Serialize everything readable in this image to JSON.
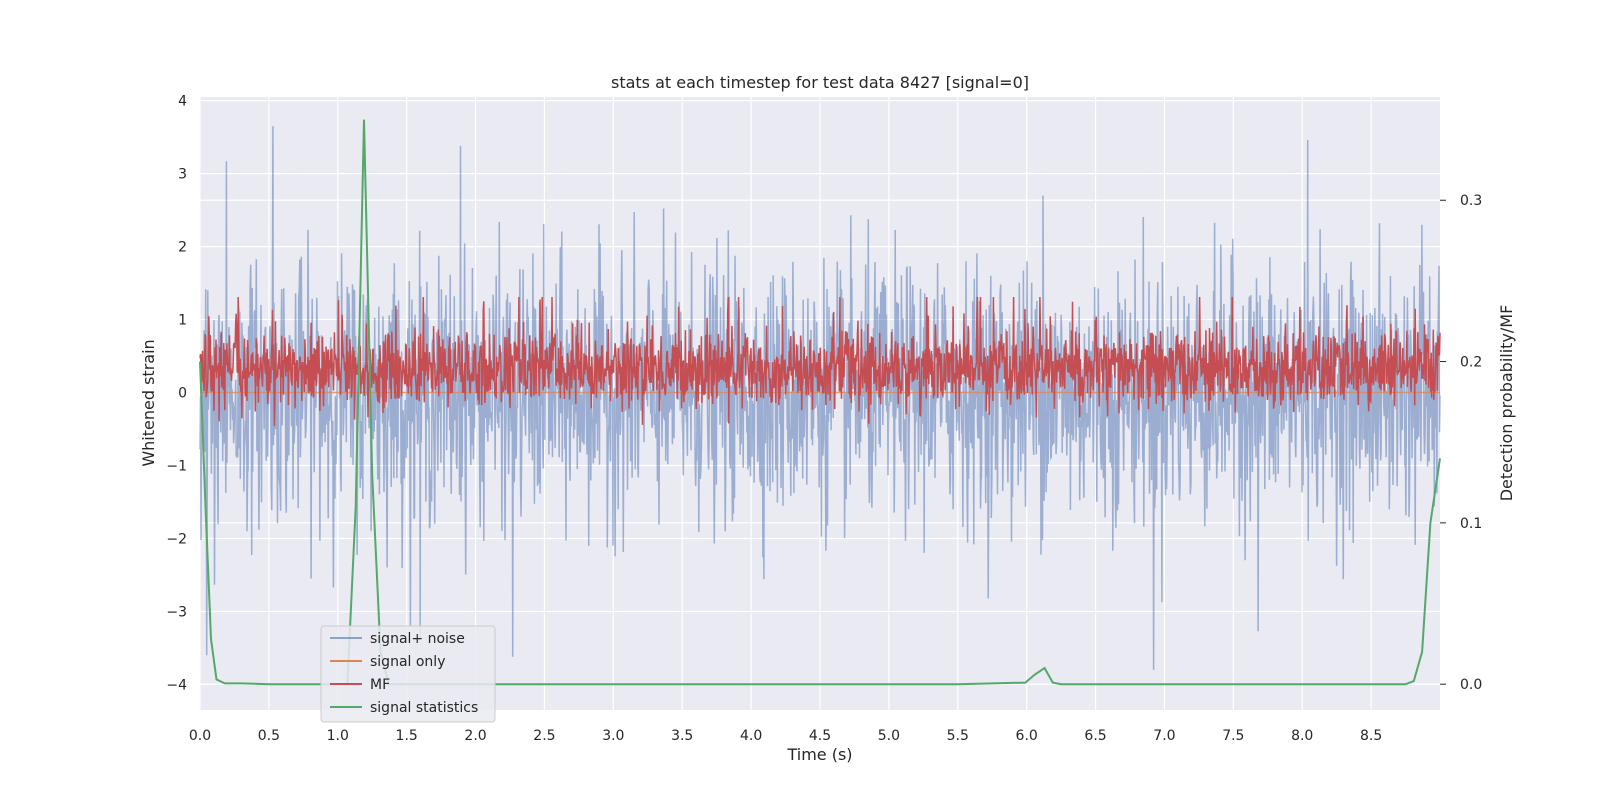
{
  "chart_data": {
    "type": "line",
    "title": "stats at each timestep for test data 8427 [signal=0]",
    "xlabel": "Time (s)",
    "ylabel_left": "Whitened strain",
    "ylabel_right": "Detection probability/MF",
    "xlim": [
      0.0,
      9.0
    ],
    "ylim_left": [
      -4.35,
      4.05
    ],
    "ylim_right": [
      -0.016,
      0.364
    ],
    "xticks": [
      "0.0",
      "0.5",
      "1.0",
      "1.5",
      "2.0",
      "2.5",
      "3.0",
      "3.5",
      "4.0",
      "4.5",
      "5.0",
      "5.5",
      "6.0",
      "6.5",
      "7.0",
      "7.5",
      "8.0",
      "8.5"
    ],
    "xtick_values": [
      0.0,
      0.5,
      1.0,
      1.5,
      2.0,
      2.5,
      3.0,
      3.5,
      4.0,
      4.5,
      5.0,
      5.5,
      6.0,
      6.5,
      7.0,
      7.5,
      8.0,
      8.5
    ],
    "yticks_left": [
      "−4",
      "−3",
      "−2",
      "−1",
      "0",
      "1",
      "2",
      "3",
      "4"
    ],
    "ytick_values_left": [
      -4,
      -3,
      -2,
      -1,
      0,
      1,
      2,
      3,
      4
    ],
    "yticks_right": [
      "0.0",
      "0.1",
      "0.2",
      "0.3"
    ],
    "ytick_values_right": [
      0.0,
      0.1,
      0.2,
      0.3
    ],
    "grid": true,
    "legend_placement": "lower-left",
    "series": [
      {
        "name": "signal+ noise",
        "axis": "left",
        "color": "#4c72b0",
        "description_stats": {
          "approx_std": 0.85,
          "peak_max": 3.65,
          "peak_min": -3.85
        },
        "peaks": [
          [
            0.19,
            3.17
          ],
          [
            0.53,
            3.65
          ],
          [
            1.89,
            3.38
          ],
          [
            6.12,
            2.7
          ],
          [
            8.04,
            3.46
          ],
          [
            8.87,
            2.3
          ]
        ],
        "troughs": [
          [
            0.05,
            -3.6
          ],
          [
            2.27,
            -3.62
          ],
          [
            6.92,
            -3.8
          ],
          [
            7.68,
            -3.27
          ],
          [
            1.6,
            -3.35
          ]
        ]
      },
      {
        "name": "signal only",
        "axis": "left",
        "color": "#dd8452",
        "constant_value": 0.0
      },
      {
        "name": "MF",
        "axis": "right",
        "color": "#c44e52",
        "description_stats": {
          "approx_mean": 0.195,
          "approx_range": [
            0.16,
            0.24
          ]
        }
      },
      {
        "name": "signal statistics",
        "axis": "right",
        "color": "#55a868",
        "x": [
          0.0,
          0.04,
          0.08,
          0.12,
          0.18,
          0.3,
          0.5,
          0.8,
          1.0,
          1.07,
          1.13,
          1.19,
          1.25,
          1.31,
          1.37,
          1.5,
          2.0,
          3.0,
          4.0,
          5.0,
          5.5,
          5.99,
          6.06,
          6.13,
          6.19,
          6.25,
          6.5,
          7.0,
          8.0,
          8.7,
          8.75,
          8.81,
          8.87,
          8.93,
          9.0
        ],
        "y": [
          0.2,
          0.11,
          0.028,
          0.003,
          0.0005,
          0.0005,
          0.0,
          0.0,
          0.0,
          0.0,
          0.11,
          0.35,
          0.13,
          0.02,
          0.0,
          0.0,
          0.0,
          0.0,
          0.0,
          0.0,
          0.0,
          0.001,
          0.006,
          0.01,
          0.001,
          0.0,
          0.0,
          0.0,
          0.0,
          0.0,
          0.0,
          0.002,
          0.02,
          0.1,
          0.14
        ]
      }
    ],
    "reference_lines": [
      {
        "axis": "left",
        "value": 0.0,
        "color": "#dd8452"
      }
    ]
  },
  "legend": {
    "items": [
      {
        "label": "signal+ noise",
        "color": "#4c72b0"
      },
      {
        "label": "signal only",
        "color": "#dd8452"
      },
      {
        "label": "MF",
        "color": "#c44e52"
      },
      {
        "label": "signal statistics",
        "color": "#55a868"
      }
    ]
  },
  "colors": {
    "plot_background": "#eaeaf2",
    "grid": "#ffffff",
    "text": "#262626"
  }
}
